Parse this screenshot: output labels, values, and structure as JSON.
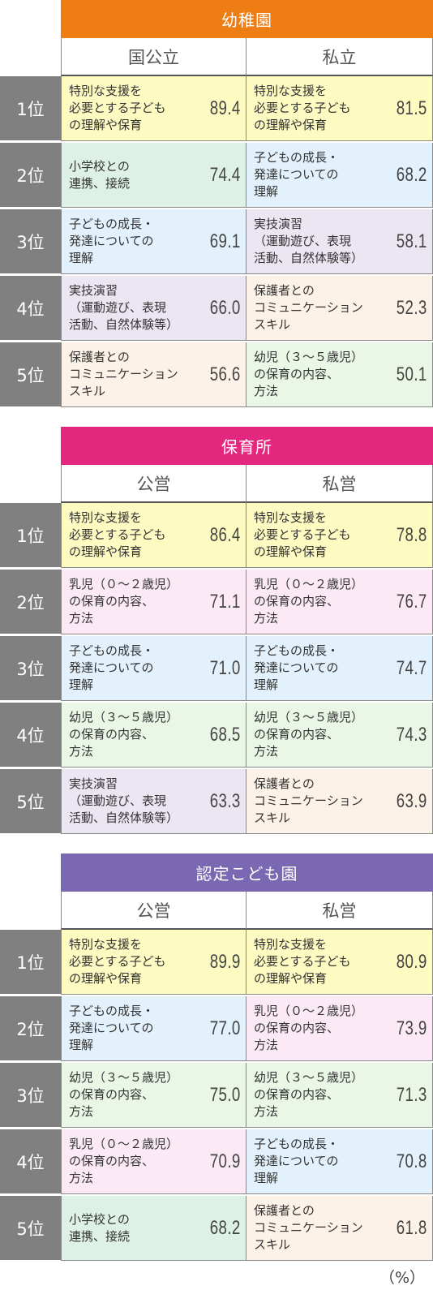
{
  "colors": {
    "kindergarten": "#ee7d14",
    "nursery": "#e5287f",
    "certified": "#7a68b2",
    "rank_bg": "#808080",
    "cat_special": "#fefbc2",
    "cat_school": "#def1e6",
    "cat_growth": "#e2f1fb",
    "cat_practice": "#ece6f2",
    "cat_guardian": "#fdf2e7",
    "cat_toddler": "#fbeaf5",
    "cat_young": "#eaf6e6"
  },
  "sections": [
    {
      "title": "幼稚園",
      "color_key": "kindergarten",
      "col1": "国公立",
      "col2": "私立",
      "rows": [
        {
          "rank": "1位",
          "left": {
            "label": "特別な支援を\n必要とする子ども\nの理解や保育",
            "value": "89.4",
            "cat": "cat_special"
          },
          "right": {
            "label": "特別な支援を\n必要とする子ども\nの理解や保育",
            "value": "81.5",
            "cat": "cat_special"
          }
        },
        {
          "rank": "2位",
          "left": {
            "label": "小学校との\n連携、接続",
            "value": "74.4",
            "cat": "cat_school"
          },
          "right": {
            "label": "子どもの成長・\n発達についての\n理解",
            "value": "68.2",
            "cat": "cat_growth"
          }
        },
        {
          "rank": "3位",
          "left": {
            "label": "子どもの成長・\n発達についての\n理解",
            "value": "69.1",
            "cat": "cat_growth"
          },
          "right": {
            "label": "実技演習\n（運動遊び、表現\n活動、自然体験等）",
            "value": "58.1",
            "cat": "cat_practice"
          }
        },
        {
          "rank": "4位",
          "left": {
            "label": "実技演習\n（運動遊び、表現\n活動、自然体験等）",
            "value": "66.0",
            "cat": "cat_practice"
          },
          "right": {
            "label": "保護者との\nコミュニケーション\nスキル",
            "value": "52.3",
            "cat": "cat_guardian"
          }
        },
        {
          "rank": "5位",
          "left": {
            "label": "保護者との\nコミュニケーション\nスキル",
            "value": "56.6",
            "cat": "cat_guardian"
          },
          "right": {
            "label": "幼児（３～５歳児）\nの保育の内容、\n方法",
            "value": "50.1",
            "cat": "cat_young"
          }
        }
      ]
    },
    {
      "title": "保育所",
      "color_key": "nursery",
      "col1": "公営",
      "col2": "私営",
      "rows": [
        {
          "rank": "1位",
          "left": {
            "label": "特別な支援を\n必要とする子ども\nの理解や保育",
            "value": "86.4",
            "cat": "cat_special"
          },
          "right": {
            "label": "特別な支援を\n必要とする子ども\nの理解や保育",
            "value": "78.8",
            "cat": "cat_special"
          }
        },
        {
          "rank": "2位",
          "left": {
            "label": "乳児（０～２歳児）\nの保育の内容、\n方法",
            "value": "71.1",
            "cat": "cat_toddler"
          },
          "right": {
            "label": "乳児（０～２歳児）\nの保育の内容、\n方法",
            "value": "76.7",
            "cat": "cat_toddler"
          }
        },
        {
          "rank": "3位",
          "left": {
            "label": "子どもの成長・\n発達についての\n理解",
            "value": "71.0",
            "cat": "cat_growth"
          },
          "right": {
            "label": "子どもの成長・\n発達についての\n理解",
            "value": "74.7",
            "cat": "cat_growth"
          }
        },
        {
          "rank": "4位",
          "left": {
            "label": "幼児（３～５歳児）\nの保育の内容、\n方法",
            "value": "68.5",
            "cat": "cat_young"
          },
          "right": {
            "label": "幼児（３～５歳児）\nの保育の内容、\n方法",
            "value": "74.3",
            "cat": "cat_young"
          }
        },
        {
          "rank": "5位",
          "left": {
            "label": "実技演習\n（運動遊び、表現\n活動、自然体験等）",
            "value": "63.3",
            "cat": "cat_practice"
          },
          "right": {
            "label": "保護者との\nコミュニケーション\nスキル",
            "value": "63.9",
            "cat": "cat_guardian"
          }
        }
      ]
    },
    {
      "title": "認定こども園",
      "color_key": "certified",
      "col1": "公営",
      "col2": "私営",
      "rows": [
        {
          "rank": "1位",
          "left": {
            "label": "特別な支援を\n必要とする子ども\nの理解や保育",
            "value": "89.9",
            "cat": "cat_special"
          },
          "right": {
            "label": "特別な支援を\n必要とする子ども\nの理解や保育",
            "value": "80.9",
            "cat": "cat_special"
          }
        },
        {
          "rank": "2位",
          "left": {
            "label": "子どもの成長・\n発達についての\n理解",
            "value": "77.0",
            "cat": "cat_growth"
          },
          "right": {
            "label": "乳児（０～２歳児）\nの保育の内容、\n方法",
            "value": "73.9",
            "cat": "cat_toddler"
          }
        },
        {
          "rank": "3位",
          "left": {
            "label": "幼児（３～５歳児）\nの保育の内容、\n方法",
            "value": "75.0",
            "cat": "cat_young"
          },
          "right": {
            "label": "幼児（３～５歳児）\nの保育の内容、\n方法",
            "value": "71.3",
            "cat": "cat_young"
          }
        },
        {
          "rank": "4位",
          "left": {
            "label": "乳児（０～２歳児）\nの保育の内容、\n方法",
            "value": "70.9",
            "cat": "cat_toddler"
          },
          "right": {
            "label": "子どもの成長・\n発達についての\n理解",
            "value": "70.8",
            "cat": "cat_growth"
          }
        },
        {
          "rank": "5位",
          "left": {
            "label": "小学校との\n連携、接続",
            "value": "68.2",
            "cat": "cat_school"
          },
          "right": {
            "label": "保護者との\nコミュニケーション\nスキル",
            "value": "61.8",
            "cat": "cat_guardian"
          }
        }
      ]
    }
  ],
  "unit": "（%）"
}
